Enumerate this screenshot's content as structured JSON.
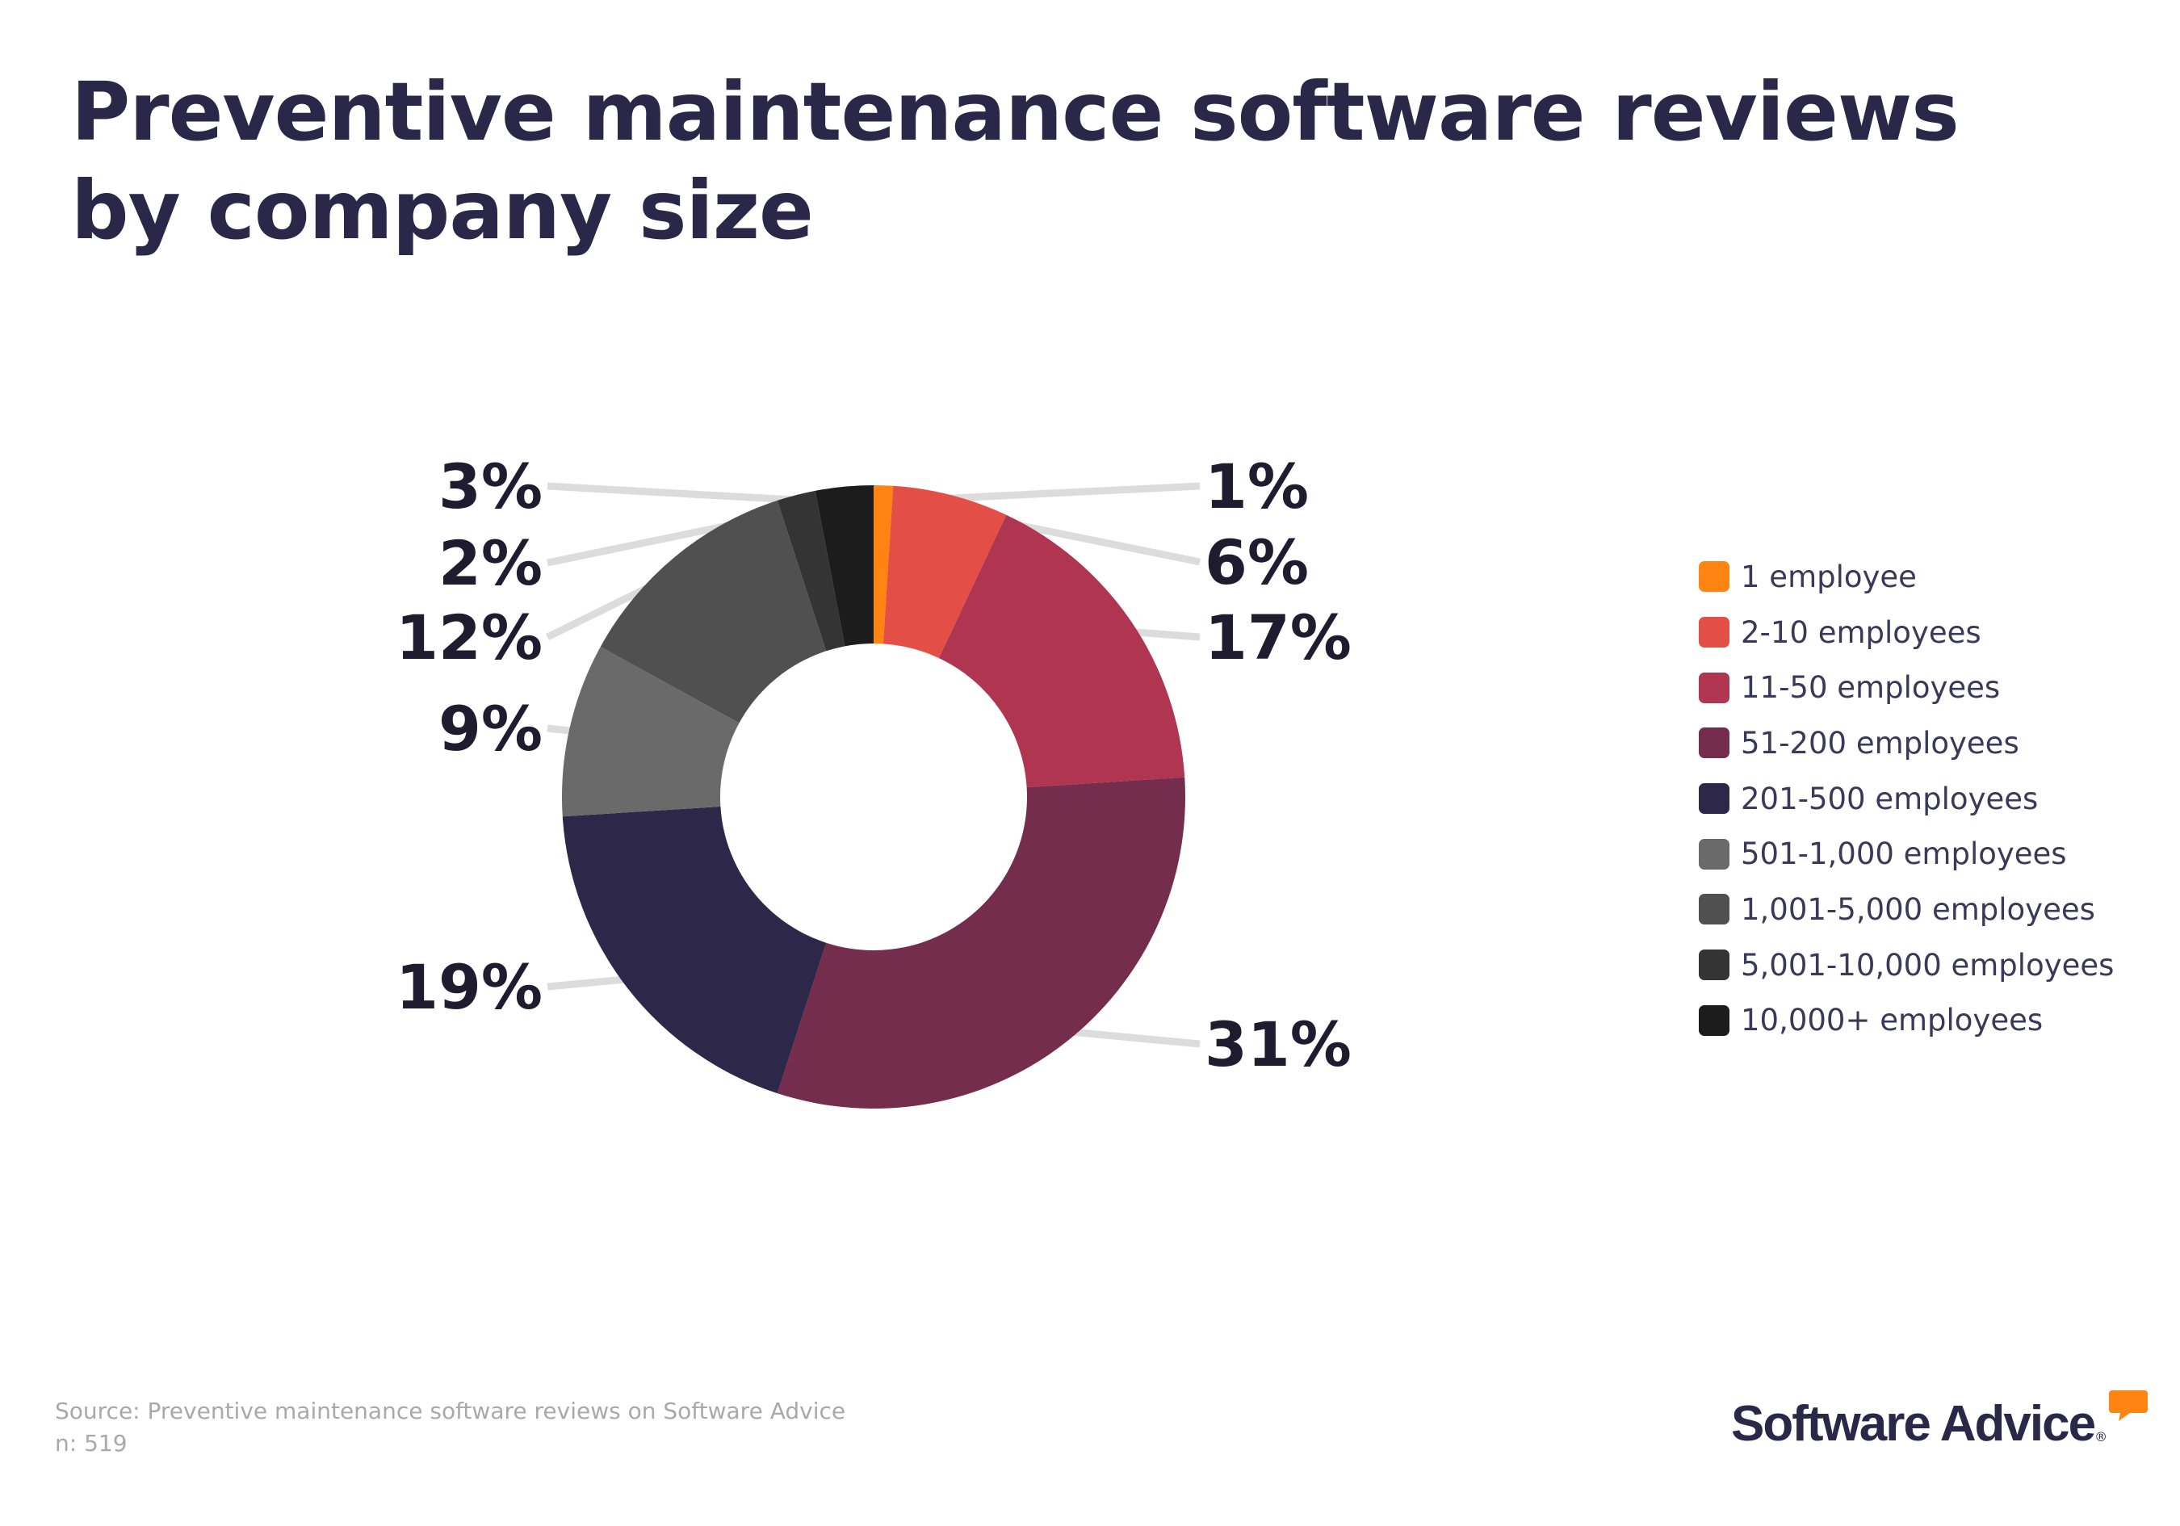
{
  "title_lines": [
    "Preventive maintenance software reviews",
    "by company size"
  ],
  "chart_data": {
    "type": "pie",
    "variant": "donut",
    "categories": [
      "1 employee",
      "2-10 employees",
      "11-50 employees",
      "51-200 employees",
      "201-500 employees",
      "501-1,000 employees",
      "1,001-5,000 employees",
      "5,001-10,000 employees",
      "10,000+ employees"
    ],
    "values": [
      1,
      6,
      17,
      31,
      19,
      9,
      12,
      2,
      3
    ],
    "data_labels": [
      "1%",
      "6%",
      "17%",
      "31%",
      "19%",
      "9%",
      "12%",
      "2%",
      "3%"
    ],
    "colors": [
      "#ff8412",
      "#e34f46",
      "#b03550",
      "#742d4d",
      "#2d2749",
      "#6a6a6a",
      "#505050",
      "#343434",
      "#1c1c1c"
    ],
    "start_angle": "top, clockwise",
    "legend_position": "right"
  },
  "source": "Source: Preventive maintenance software reviews on Software Advice",
  "n": "n: 519",
  "logo": {
    "text": "Software Advice",
    "accent": "#ff8412",
    "reg": "®"
  }
}
